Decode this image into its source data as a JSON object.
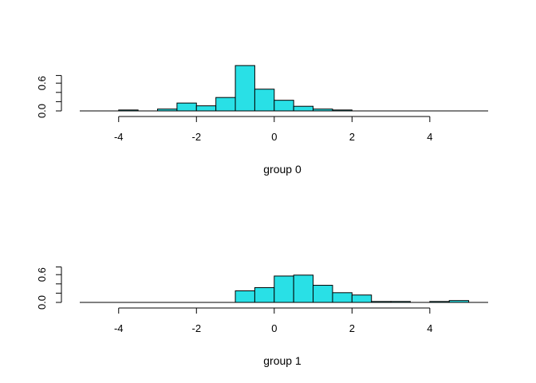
{
  "chart_data": [
    {
      "type": "bar",
      "xlabel": "group 0",
      "xlim": [
        -5,
        5.5
      ],
      "ylim": [
        0,
        1.0
      ],
      "x_ticks": [
        "-4",
        "-2",
        "0",
        "2",
        "4"
      ],
      "y_ticks": [
        "0.0",
        "0.6"
      ],
      "bar_color": "#29e0e6",
      "bin_width": 0.5,
      "bins": [
        {
          "start": -4.0,
          "value": 0.02
        },
        {
          "start": -3.5,
          "value": 0.0
        },
        {
          "start": -3.0,
          "value": 0.04
        },
        {
          "start": -2.5,
          "value": 0.17
        },
        {
          "start": -2.0,
          "value": 0.11
        },
        {
          "start": -1.5,
          "value": 0.29
        },
        {
          "start": -1.0,
          "value": 0.98
        },
        {
          "start": -0.5,
          "value": 0.47
        },
        {
          "start": 0.0,
          "value": 0.23
        },
        {
          "start": 0.5,
          "value": 0.1
        },
        {
          "start": 1.0,
          "value": 0.04
        },
        {
          "start": 1.5,
          "value": 0.02
        }
      ]
    },
    {
      "type": "bar",
      "xlabel": "group 1",
      "xlim": [
        -5,
        5.5
      ],
      "ylim": [
        0,
        1.0
      ],
      "x_ticks": [
        "-4",
        "-2",
        "0",
        "2",
        "4"
      ],
      "y_ticks": [
        "0.0",
        "0.6"
      ],
      "bar_color": "#29e0e6",
      "bin_width": 0.5,
      "bins": [
        {
          "start": -1.0,
          "value": 0.25
        },
        {
          "start": -0.5,
          "value": 0.32
        },
        {
          "start": 0.0,
          "value": 0.57
        },
        {
          "start": 0.5,
          "value": 0.59
        },
        {
          "start": 1.0,
          "value": 0.37
        },
        {
          "start": 1.5,
          "value": 0.21
        },
        {
          "start": 2.0,
          "value": 0.16
        },
        {
          "start": 2.5,
          "value": 0.02
        },
        {
          "start": 3.0,
          "value": 0.02
        },
        {
          "start": 3.5,
          "value": 0.0
        },
        {
          "start": 4.0,
          "value": 0.02
        },
        {
          "start": 4.5,
          "value": 0.04
        }
      ]
    }
  ]
}
